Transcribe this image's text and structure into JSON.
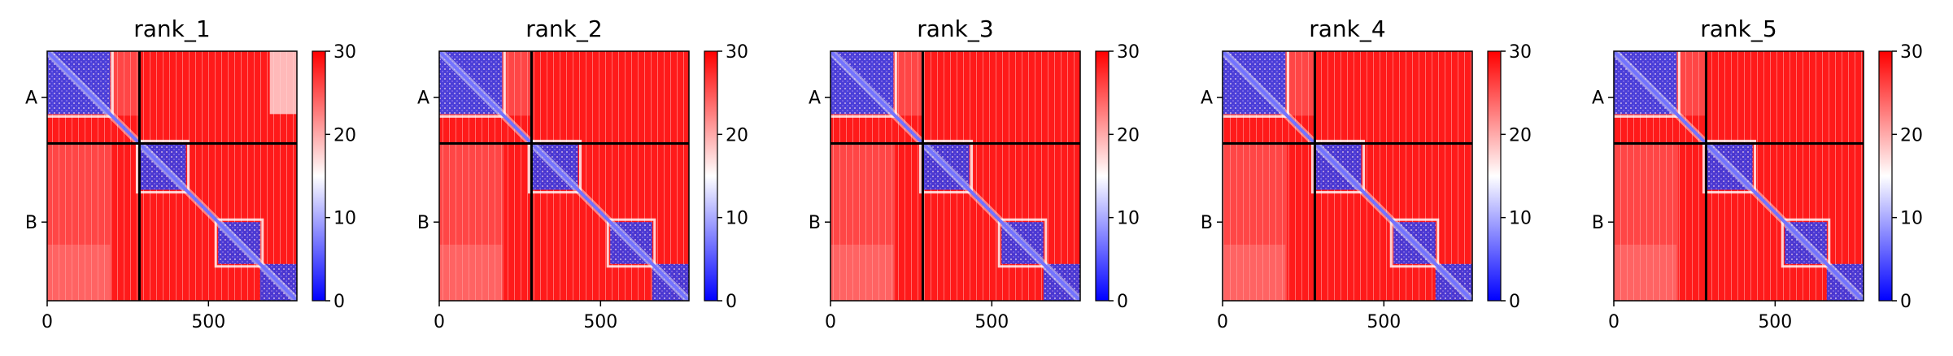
{
  "chart_data": [
    {
      "type": "heatmap",
      "title": "rank_1",
      "xlabel": "",
      "ylabel": "",
      "xlim": [
        0,
        774
      ],
      "xticks": [
        0,
        500
      ],
      "y_tick_labels": [
        "A",
        "B"
      ],
      "chain_boundary": 286,
      "chains": [
        {
          "name": "A",
          "start": 0,
          "end": 286
        },
        {
          "name": "B",
          "start": 286,
          "end": 774
        }
      ],
      "colorbar": {
        "min": 0,
        "max": 30,
        "ticks": [
          0,
          10,
          20,
          30
        ],
        "colors": [
          "#0000ff",
          "#ffffff",
          "#ff0000"
        ]
      },
      "low_error_blocks": [
        [
          0,
          195,
          0,
          195
        ],
        [
          286,
          430,
          286,
          430
        ],
        [
          530,
          660,
          530,
          660
        ],
        [
          660,
          774,
          660,
          774
        ],
        [
          0,
          195,
          690,
          774
        ]
      ],
      "grid": false
    },
    {
      "type": "heatmap",
      "title": "rank_2",
      "xlabel": "",
      "ylabel": "",
      "xlim": [
        0,
        774
      ],
      "xticks": [
        0,
        500
      ],
      "y_tick_labels": [
        "A",
        "B"
      ],
      "chain_boundary": 286,
      "chains": [
        {
          "name": "A",
          "start": 0,
          "end": 286
        },
        {
          "name": "B",
          "start": 286,
          "end": 774
        }
      ],
      "colorbar": {
        "min": 0,
        "max": 30,
        "ticks": [
          0,
          10,
          20,
          30
        ],
        "colors": [
          "#0000ff",
          "#ffffff",
          "#ff0000"
        ]
      },
      "low_error_blocks": [
        [
          0,
          195,
          0,
          195
        ],
        [
          286,
          430,
          286,
          430
        ],
        [
          530,
          660,
          530,
          660
        ],
        [
          660,
          774,
          660,
          774
        ]
      ],
      "grid": false
    },
    {
      "type": "heatmap",
      "title": "rank_3",
      "xlabel": "",
      "ylabel": "",
      "xlim": [
        0,
        774
      ],
      "xticks": [
        0,
        500
      ],
      "y_tick_labels": [
        "A",
        "B"
      ],
      "chain_boundary": 286,
      "chains": [
        {
          "name": "A",
          "start": 0,
          "end": 286
        },
        {
          "name": "B",
          "start": 286,
          "end": 774
        }
      ],
      "colorbar": {
        "min": 0,
        "max": 30,
        "ticks": [
          0,
          10,
          20,
          30
        ],
        "colors": [
          "#0000ff",
          "#ffffff",
          "#ff0000"
        ]
      },
      "low_error_blocks": [
        [
          0,
          195,
          0,
          195
        ],
        [
          286,
          430,
          286,
          430
        ],
        [
          530,
          660,
          530,
          660
        ],
        [
          660,
          774,
          660,
          774
        ]
      ],
      "grid": false
    },
    {
      "type": "heatmap",
      "title": "rank_4",
      "xlabel": "",
      "ylabel": "",
      "xlim": [
        0,
        774
      ],
      "xticks": [
        0,
        500
      ],
      "y_tick_labels": [
        "A",
        "B"
      ],
      "chain_boundary": 286,
      "chains": [
        {
          "name": "A",
          "start": 0,
          "end": 286
        },
        {
          "name": "B",
          "start": 286,
          "end": 774
        }
      ],
      "colorbar": {
        "min": 0,
        "max": 30,
        "ticks": [
          0,
          10,
          20,
          30
        ],
        "colors": [
          "#0000ff",
          "#ffffff",
          "#ff0000"
        ]
      },
      "low_error_blocks": [
        [
          0,
          195,
          0,
          195
        ],
        [
          286,
          430,
          286,
          430
        ],
        [
          530,
          660,
          530,
          660
        ],
        [
          660,
          774,
          660,
          774
        ]
      ],
      "grid": false
    },
    {
      "type": "heatmap",
      "title": "rank_5",
      "xlabel": "",
      "ylabel": "",
      "xlim": [
        0,
        774
      ],
      "xticks": [
        0,
        500
      ],
      "y_tick_labels": [
        "A",
        "B"
      ],
      "chain_boundary": 286,
      "chains": [
        {
          "name": "A",
          "start": 0,
          "end": 286
        },
        {
          "name": "B",
          "start": 286,
          "end": 774
        }
      ],
      "colorbar": {
        "min": 0,
        "max": 30,
        "ticks": [
          0,
          10,
          20,
          30
        ],
        "colors": [
          "#0000ff",
          "#ffffff",
          "#ff0000"
        ]
      },
      "low_error_blocks": [
        [
          0,
          195,
          0,
          195
        ],
        [
          286,
          430,
          286,
          430
        ],
        [
          530,
          660,
          530,
          660
        ],
        [
          660,
          774,
          660,
          774
        ]
      ],
      "grid": false
    }
  ]
}
